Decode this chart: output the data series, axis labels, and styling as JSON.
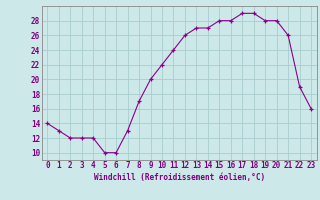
{
  "x": [
    0,
    1,
    2,
    3,
    4,
    5,
    6,
    7,
    8,
    9,
    10,
    11,
    12,
    13,
    14,
    15,
    16,
    17,
    18,
    19,
    20,
    21,
    22,
    23
  ],
  "y": [
    14,
    13,
    12,
    12,
    12,
    10,
    10,
    13,
    17,
    20,
    22,
    24,
    26,
    27,
    27,
    28,
    28,
    29,
    29,
    28,
    28,
    26,
    19,
    16
  ],
  "line_color": "#8B008B",
  "marker_color": "#8B008B",
  "bg_color": "#cce8e8",
  "grid_color": "#aacccc",
  "xlabel": "Windchill (Refroidissement éolien,°C)",
  "yticks": [
    10,
    12,
    14,
    16,
    18,
    20,
    22,
    24,
    26,
    28
  ],
  "ylim": [
    9.0,
    30.0
  ],
  "xlim": [
    -0.5,
    23.5
  ],
  "xlabel_fontsize": 5.5,
  "tick_fontsize": 5.5,
  "label_color": "#800080",
  "tick_color": "#800080",
  "spine_color": "#888888"
}
